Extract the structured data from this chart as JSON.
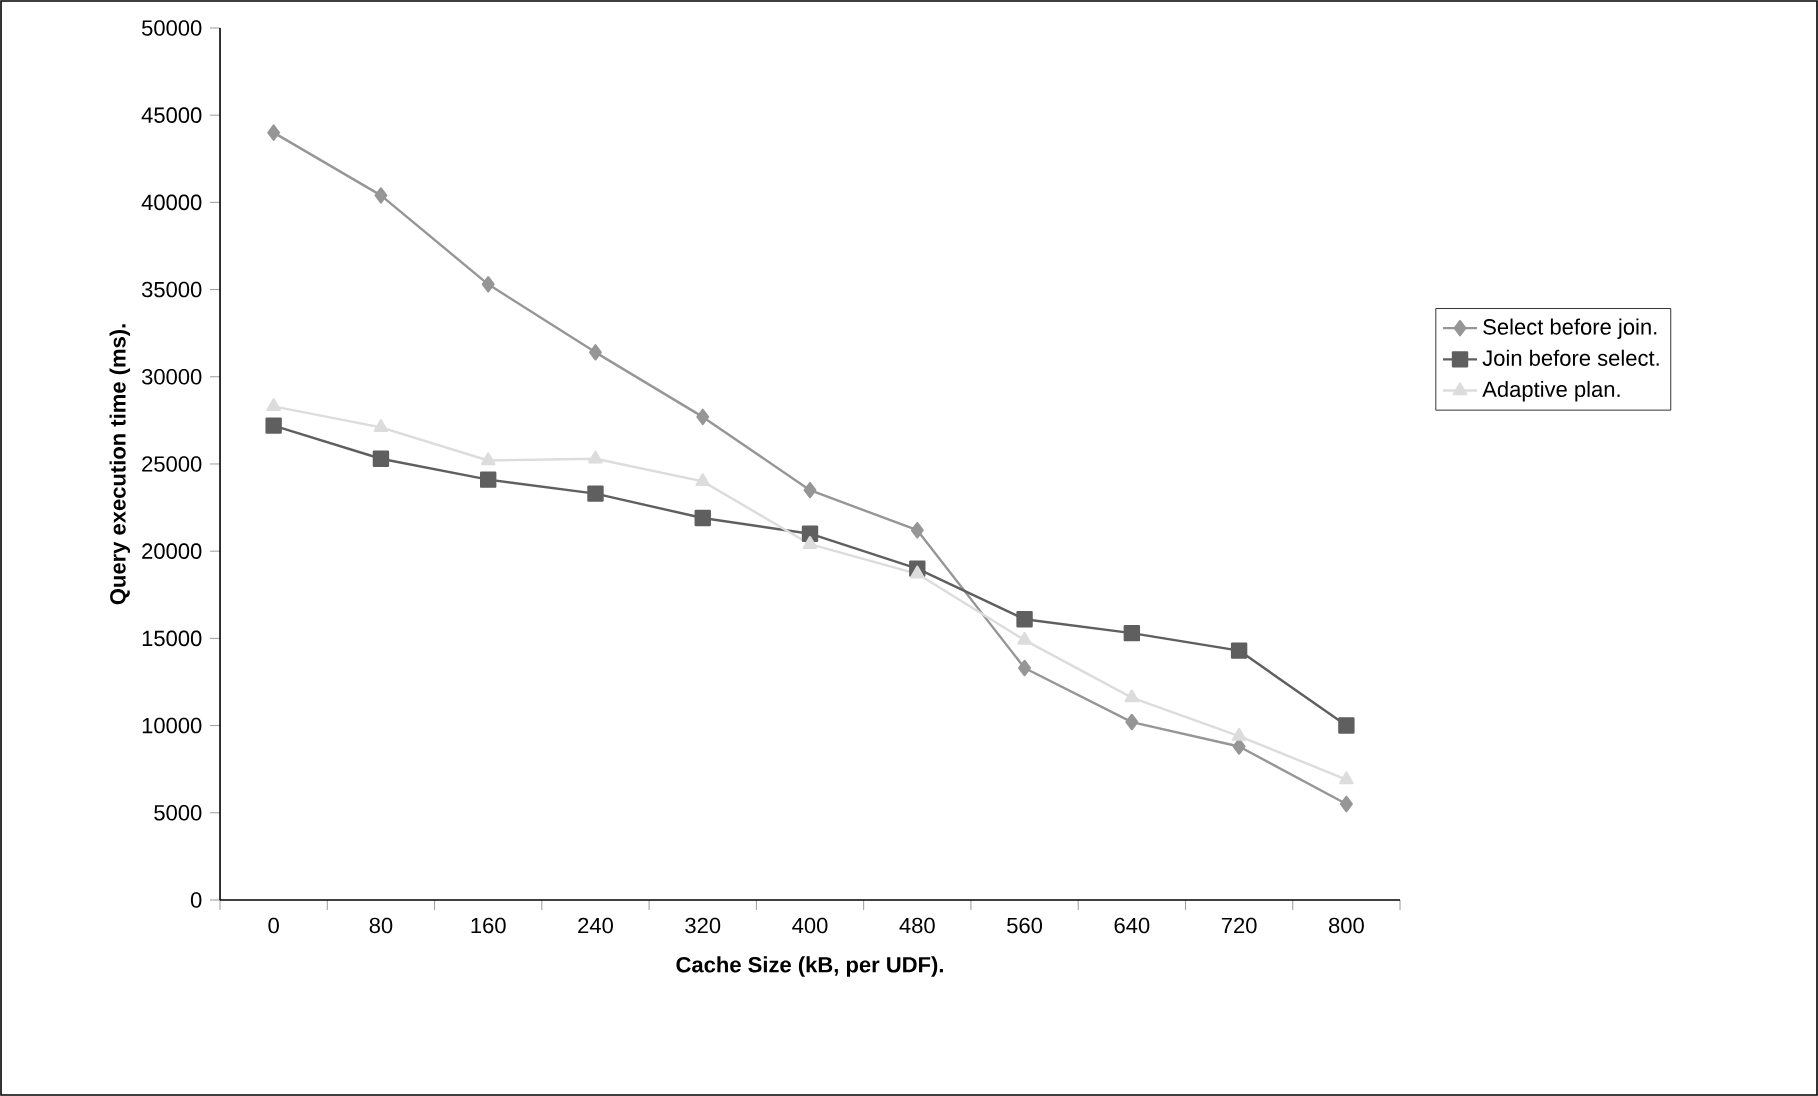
{
  "chart_data": {
    "type": "line",
    "xlabel": "Cache Size (kB, per UDF).",
    "ylabel": "Query execution time (ms).",
    "categories": [
      "0",
      "80",
      "160",
      "240",
      "320",
      "400",
      "480",
      "560",
      "640",
      "720",
      "800"
    ],
    "series": [
      {
        "name": "Select before join.",
        "color": "#969696",
        "marker": "diamond",
        "values": [
          44000,
          40400,
          35300,
          31400,
          27700,
          23500,
          21200,
          13300,
          10200,
          8800,
          5500
        ]
      },
      {
        "name": "Join before select.",
        "color": "#5f5f5f",
        "marker": "square",
        "values": [
          27200,
          25300,
          24100,
          23300,
          21900,
          21000,
          19000,
          16100,
          15300,
          14300,
          10000
        ]
      },
      {
        "name": "Adaptive plan.",
        "color": "#dcdcdc",
        "marker": "triangle",
        "values": [
          28300,
          27100,
          25200,
          25300,
          24000,
          20400,
          18700,
          14900,
          11600,
          9400,
          6900
        ]
      }
    ],
    "ylim": [
      0,
      50000
    ],
    "yticks": [
      0,
      5000,
      10000,
      15000,
      20000,
      25000,
      30000,
      35000,
      40000,
      45000,
      50000
    ],
    "grid": false,
    "legend": "right",
    "line_style": "solid"
  }
}
